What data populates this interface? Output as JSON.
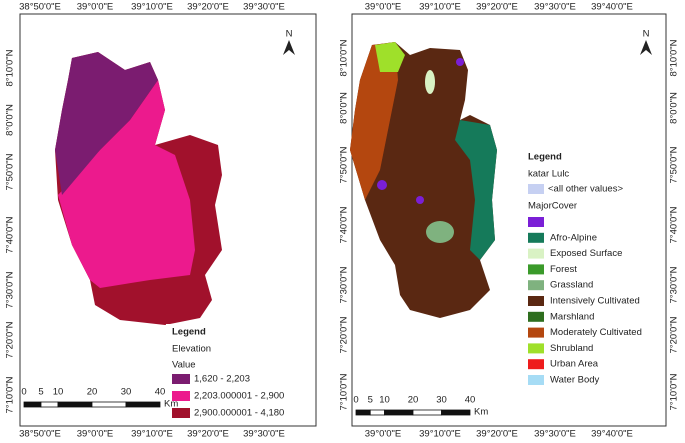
{
  "left_map": {
    "top_labels": [
      "38°50'0\"E",
      "39°0'0\"E",
      "39°10'0\"E",
      "39°20'0\"E",
      "39°30'0\"E"
    ],
    "bottom_labels": [
      "38°50'0\"E",
      "39°0'0\"E",
      "39°10'0\"E",
      "39°20'0\"E",
      "39°30'0\"E"
    ],
    "left_labels": [
      "8°10'0\"N",
      "8°0'0\"N",
      "7°50'0\"N",
      "7°40'0\"N",
      "7°30'0\"N",
      "7°20'0\"N",
      "7°10'0\"N"
    ],
    "north": "N",
    "legend": {
      "title": "Legend",
      "field": "Elevation",
      "subtitle": "Value",
      "items": [
        {
          "label": "1,620 - 2,203",
          "color": "#7b1c70"
        },
        {
          "label": "2,203.000001 - 2,900",
          "color": "#ec1a8d"
        },
        {
          "label": "2,900.000001 - 4,180",
          "color": "#a1112c"
        }
      ]
    },
    "scale": {
      "ticks": [
        0,
        5,
        10,
        20,
        30,
        40
      ],
      "unit": "Km"
    }
  },
  "right_map": {
    "top_labels": [
      "39°0'0\"E",
      "39°10'0\"E",
      "39°20'0\"E",
      "39°30'0\"E",
      "39°40'0\"E"
    ],
    "bottom_labels": [
      "39°0'0\"E",
      "39°10'0\"E",
      "39°20'0\"E",
      "39°30'0\"E",
      "39°40'0\"E"
    ],
    "left_labels": [
      "8°10'0\"N",
      "8°0'0\"N",
      "7°50'0\"N",
      "7°40'0\"N",
      "7°30'0\"N",
      "7°20'0\"N",
      "7°10'0\"N"
    ],
    "right_labels": [
      "8°10'0\"N",
      "8°0'0\"N",
      "7°50'0\"N",
      "7°40'0\"N",
      "7°30'0\"N",
      "7°20'0\"N",
      "7°10'0\"N"
    ],
    "north": "N",
    "legend": {
      "title": "Legend",
      "layer": "katar Lulc",
      "other": "<all other values>",
      "other_color": "#c6d0f2",
      "field": "MajorCover",
      "items": [
        {
          "color": "#7a1fd6"
        },
        {
          "label": "Afro-Alpine",
          "color": "#157a5a"
        },
        {
          "label": "Exposed Surface",
          "color": "#d9f2c4"
        },
        {
          "label": "Forest",
          "color": "#3a9a2a"
        },
        {
          "label": "Grassland",
          "color": "#7fb27f"
        },
        {
          "label": "Intensively Cultivated",
          "color": "#5a2812"
        },
        {
          "label": "Marshland",
          "color": "#2e6e1e"
        },
        {
          "label": "Moderately Cultivated",
          "color": "#b4470f"
        },
        {
          "label": "Shrubland",
          "color": "#9fe02a"
        },
        {
          "label": "Urban Area",
          "color": "#ee1c1c"
        },
        {
          "label": "Water Body",
          "color": "#a6dcf5"
        }
      ]
    },
    "scale": {
      "ticks": [
        0,
        5,
        10,
        20,
        30,
        40
      ],
      "unit": "Km"
    }
  }
}
